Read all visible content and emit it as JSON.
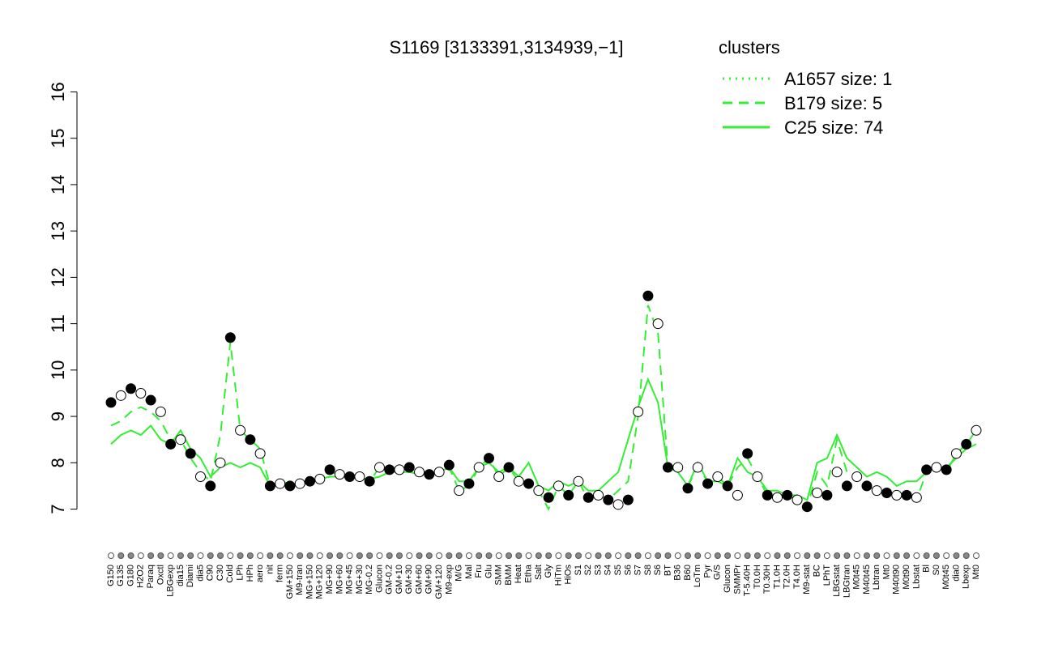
{
  "chart_data": {
    "type": "line",
    "title": "S1169 [3133391,3134939,−1]",
    "legend_title": "clusters",
    "legend_color": "#33ee33",
    "ylim": [
      6.8,
      16.2
    ],
    "yticks": [
      7,
      8,
      9,
      10,
      11,
      12,
      13,
      14,
      15,
      16
    ],
    "categories": [
      "G150",
      "G135",
      "G180",
      "H2O2",
      "Paraq",
      "Oxctl",
      "LBGexp",
      "dia15",
      "Diami",
      "dia5",
      "C90",
      "C30",
      "Cold",
      "LPh",
      "HPh",
      "aero",
      "nit",
      "ferm",
      "GM+150",
      "M9-tran",
      "MG+150",
      "MG+120",
      "MG+90",
      "MG+60",
      "MG+45",
      "MG+30",
      "MG-0.2",
      "Glucon",
      "GM-0.2",
      "GM+10",
      "GM+30",
      "GM+60",
      "GM+90",
      "GM+120",
      "M9-exp",
      "M/G",
      "Mal",
      "Fru",
      "Glu",
      "SMM",
      "BMM",
      "Heat",
      "Etha",
      "Salt",
      "Gly",
      "HiTm",
      "HiOs",
      "S1",
      "S2",
      "S3",
      "S4",
      "S5",
      "S6",
      "S7",
      "S8",
      "S6",
      "BT",
      "B36",
      "B60",
      "LoTm",
      "Pyr",
      "G/S",
      "Glucon",
      "SMMPr",
      "T-5.40H",
      "T0.0H",
      "T0.30H",
      "T1.0H",
      "T2.0H",
      "T4.0H",
      "M9-stat",
      "BC",
      "LPhT",
      "LBGstat",
      "LBGtran",
      "M0t45",
      "M40t45",
      "Lbtran",
      "Mt0",
      "M40t90",
      "M0t90",
      "Lbstat",
      "Bl",
      "S0",
      "M0t45",
      "dia0",
      "Lbexp",
      "Mt0"
    ],
    "points": {
      "color": "#000000",
      "values": [
        9.3,
        9.45,
        9.6,
        9.5,
        9.35,
        9.1,
        8.4,
        8.5,
        8.2,
        7.7,
        7.5,
        8.0,
        10.7,
        8.7,
        8.5,
        8.2,
        7.5,
        7.55,
        7.5,
        7.55,
        7.6,
        7.65,
        7.85,
        7.75,
        7.7,
        7.7,
        7.6,
        7.9,
        7.85,
        7.85,
        7.9,
        7.8,
        7.75,
        7.8,
        7.95,
        7.4,
        7.55,
        7.9,
        8.1,
        7.7,
        7.9,
        7.6,
        7.55,
        7.4,
        7.25,
        7.5,
        7.3,
        7.6,
        7.25,
        7.3,
        7.2,
        7.1,
        7.2,
        9.1,
        11.6,
        11.0,
        7.9,
        7.9,
        7.45,
        7.9,
        7.55,
        7.7,
        7.5,
        7.3,
        8.2,
        7.7,
        7.3,
        7.25,
        7.3,
        7.2,
        7.05,
        7.35,
        7.3,
        7.8,
        7.5,
        7.7,
        7.5,
        7.4,
        7.35,
        7.3,
        7.3,
        7.25,
        7.85,
        7.9,
        7.85,
        8.2,
        8.4,
        8.7
      ]
    },
    "series": [
      {
        "name": "A1657 size: 1",
        "color": "#33ee33",
        "dash": "dotted"
      },
      {
        "name": "B179 size: 5",
        "color": "#33ee33",
        "dash": "dashed",
        "values": [
          8.8,
          8.9,
          9.1,
          9.2,
          9.1,
          8.9,
          8.5,
          8.5,
          8.1,
          7.8,
          7.6,
          8.6,
          10.6,
          8.7,
          8.5,
          8.3,
          7.5,
          7.6,
          7.5,
          7.55,
          7.6,
          7.65,
          7.8,
          7.75,
          7.7,
          7.7,
          7.6,
          7.9,
          7.85,
          7.85,
          7.9,
          7.8,
          7.75,
          7.8,
          7.9,
          7.4,
          7.5,
          7.9,
          8.1,
          7.7,
          7.9,
          7.6,
          7.6,
          7.4,
          7.0,
          7.5,
          7.3,
          7.6,
          7.2,
          7.3,
          7.2,
          7.4,
          7.6,
          9.0,
          11.4,
          10.8,
          7.9,
          7.8,
          7.5,
          7.9,
          7.6,
          7.7,
          7.5,
          7.9,
          8.1,
          7.7,
          7.3,
          7.3,
          7.3,
          7.2,
          7.05,
          7.8,
          7.5,
          8.5,
          7.8,
          7.7,
          7.5,
          7.4,
          7.3,
          7.3,
          7.3,
          7.2,
          7.8,
          7.9,
          7.8,
          8.2,
          8.4,
          8.7
        ]
      },
      {
        "name": "C25 size: 74",
        "color": "#33ee33",
        "dash": "solid",
        "values": [
          8.4,
          8.6,
          8.7,
          8.6,
          8.8,
          8.5,
          8.4,
          8.7,
          8.3,
          8.1,
          7.7,
          7.9,
          8.0,
          7.9,
          8.0,
          7.9,
          7.5,
          7.6,
          7.55,
          7.55,
          7.6,
          7.65,
          7.7,
          7.7,
          7.7,
          7.65,
          7.65,
          7.7,
          7.8,
          7.8,
          7.8,
          7.75,
          7.75,
          7.8,
          7.9,
          7.6,
          7.6,
          7.9,
          8.0,
          7.8,
          7.9,
          7.7,
          8.0,
          7.5,
          7.4,
          7.6,
          7.5,
          7.6,
          7.4,
          7.4,
          7.6,
          7.8,
          8.5,
          9.2,
          9.8,
          9.3,
          7.9,
          7.8,
          7.5,
          8.0,
          7.6,
          7.6,
          7.5,
          8.1,
          7.8,
          7.7,
          7.4,
          7.4,
          7.3,
          7.3,
          7.2,
          8.0,
          8.1,
          8.6,
          8.1,
          7.9,
          7.7,
          7.8,
          7.7,
          7.5,
          7.6,
          7.6,
          7.8,
          7.9,
          7.9,
          8.1,
          8.3,
          8.4
        ]
      }
    ]
  }
}
